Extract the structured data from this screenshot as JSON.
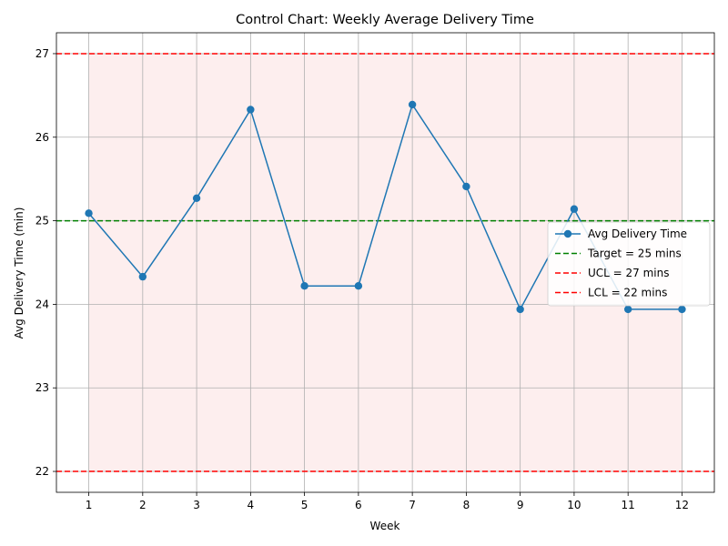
{
  "chart_data": {
    "type": "line",
    "title": "Control Chart: Weekly Average Delivery Time",
    "xlabel": "Week",
    "ylabel": "Avg Delivery Time (min)",
    "categories": [
      "1",
      "2",
      "3",
      "4",
      "5",
      "6",
      "7",
      "8",
      "9",
      "10",
      "11",
      "12"
    ],
    "x": [
      1,
      2,
      3,
      4,
      5,
      6,
      7,
      8,
      9,
      10,
      11,
      12
    ],
    "xlim": [
      0.4,
      12.6
    ],
    "ylim": [
      21.75,
      27.25
    ],
    "yticks": [
      22,
      23,
      24,
      25,
      26,
      27
    ],
    "grid": true,
    "legend_position": "center-right",
    "series": [
      {
        "name": "Avg Delivery Time",
        "values": [
          25.09,
          24.33,
          25.27,
          26.33,
          24.22,
          24.22,
          26.39,
          25.41,
          23.94,
          25.14,
          23.94,
          23.94
        ],
        "color": "#1f77b4",
        "marker": "circle"
      }
    ],
    "reference_lines": [
      {
        "name": "Target = 25 mins",
        "value": 25,
        "color": "#008000",
        "style": "dashed"
      },
      {
        "name": "UCL = 27 mins",
        "value": 27,
        "color": "#ff0000",
        "style": "dashed"
      },
      {
        "name": "LCL = 22 mins",
        "value": 22,
        "color": "#ff0000",
        "style": "dashed"
      }
    ],
    "shaded_band": {
      "from": 22,
      "to": 27,
      "x_from": 1,
      "x_to": 12,
      "color": "#fdeeee"
    }
  }
}
